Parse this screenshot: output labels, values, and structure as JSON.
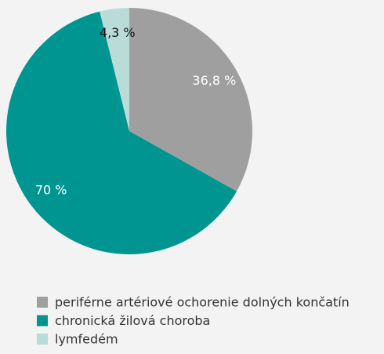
{
  "chart_data": {
    "type": "pie",
    "categories": [
      "periférne artériové ochorenie dolných končatín",
      "chronická žilová choroba",
      "lymfedém"
    ],
    "values": [
      36.8,
      70,
      4.3
    ],
    "value_labels": [
      "36,8 %",
      "70 %",
      "4,3 %"
    ],
    "colors": [
      "#a09f9f",
      "#009590",
      "#b9dcd9"
    ],
    "legend": "bottom-left"
  }
}
